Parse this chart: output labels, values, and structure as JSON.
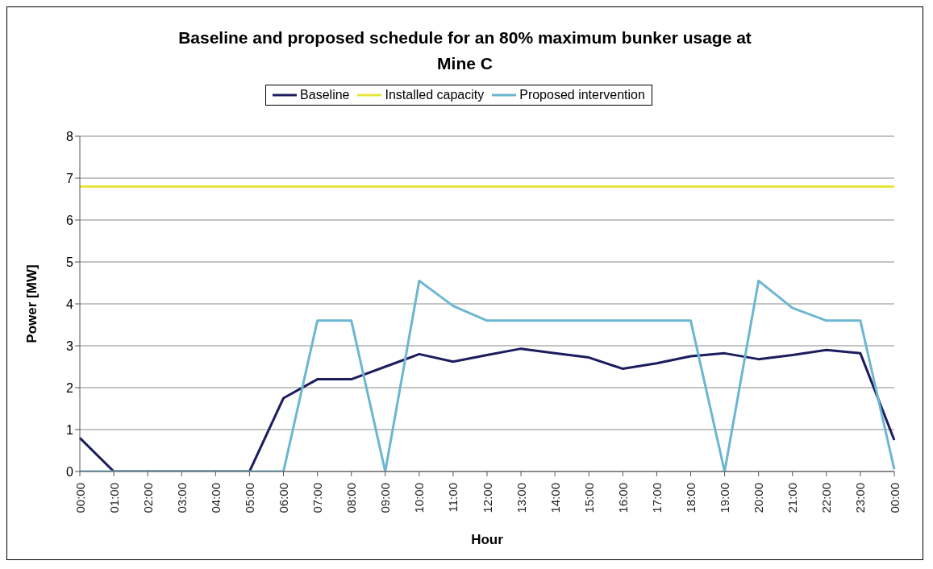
{
  "chart_data": {
    "type": "line",
    "title": "Baseline and proposed schedule for an 80% maximum bunker usage at Mine C",
    "xlabel": "Hour",
    "ylabel": "Power [MW]",
    "categories": [
      "00:00",
      "01:00",
      "02:00",
      "03:00",
      "04:00",
      "05:00",
      "06:00",
      "07:00",
      "08:00",
      "09:00",
      "10:00",
      "11:00",
      "12:00",
      "13:00",
      "14:00",
      "15:00",
      "16:00",
      "17:00",
      "18:00",
      "19:00",
      "20:00",
      "21:00",
      "22:00",
      "23:00",
      "00:00"
    ],
    "series": [
      {
        "name": "Installed capacity",
        "color": "#e6e63c",
        "values": [
          6.8,
          6.8,
          6.8,
          6.8,
          6.8,
          6.8,
          6.8,
          6.8,
          6.8,
          6.8,
          6.8,
          6.8,
          6.8,
          6.8,
          6.8,
          6.8,
          6.8,
          6.8,
          6.8,
          6.8,
          6.8,
          6.8,
          6.8,
          6.8,
          6.8
        ]
      },
      {
        "name": "Baseline",
        "color": "#1c1c5e",
        "values": [
          0.8,
          0,
          0,
          0,
          0,
          0,
          1.75,
          2.2,
          2.2,
          2.5,
          2.8,
          2.62,
          2.78,
          2.93,
          2.82,
          2.72,
          2.45,
          2.58,
          2.75,
          2.82,
          2.68,
          2.78,
          2.9,
          2.82,
          0.75
        ]
      },
      {
        "name": "Proposed intervention",
        "color": "#6cb6d2",
        "values": [
          0,
          0,
          0,
          0,
          0,
          0,
          0,
          3.6,
          3.6,
          0,
          4.55,
          3.95,
          3.6,
          3.6,
          3.6,
          3.6,
          3.6,
          3.6,
          3.6,
          0,
          4.55,
          3.9,
          3.6,
          3.6,
          0.05
        ]
      }
    ],
    "ylim": [
      0,
      8
    ],
    "yticks": [
      0,
      1,
      2,
      3,
      4,
      5,
      6,
      7,
      8
    ],
    "grid": "y",
    "legend": "top",
    "marker": "none",
    "line_style": "solid"
  }
}
